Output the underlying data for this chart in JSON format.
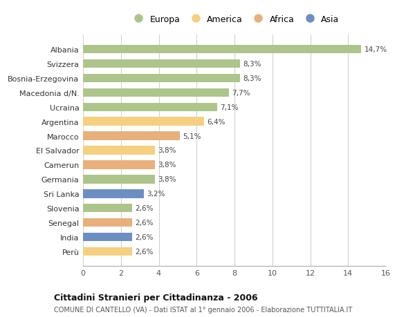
{
  "categories": [
    "Perù",
    "India",
    "Senegal",
    "Slovenia",
    "Sri Lanka",
    "Germania",
    "Camerun",
    "El Salvador",
    "Marocco",
    "Argentina",
    "Ucraina",
    "Macedonia d/N.",
    "Bosnia-Erzegovina",
    "Svizzera",
    "Albania"
  ],
  "values": [
    2.6,
    2.6,
    2.6,
    2.6,
    3.2,
    3.8,
    3.8,
    3.8,
    5.1,
    6.4,
    7.1,
    7.7,
    8.3,
    8.3,
    14.7
  ],
  "labels": [
    "2,6%",
    "2,6%",
    "2,6%",
    "2,6%",
    "3,2%",
    "3,8%",
    "3,8%",
    "3,8%",
    "5,1%",
    "6,4%",
    "7,1%",
    "7,7%",
    "8,3%",
    "8,3%",
    "14,7%"
  ],
  "continent": [
    "America",
    "Asia",
    "Africa",
    "Europa",
    "Asia",
    "Europa",
    "Africa",
    "America",
    "Africa",
    "America",
    "Europa",
    "Europa",
    "Europa",
    "Europa",
    "Europa"
  ],
  "colors": {
    "Europa": "#adc58a",
    "America": "#f5d080",
    "Africa": "#e8b07a",
    "Asia": "#6b8fc2"
  },
  "legend_order": [
    "Europa",
    "America",
    "Africa",
    "Asia"
  ],
  "title1": "Cittadini Stranieri per Cittadinanza - 2006",
  "title2": "COMUNE DI CANTELLO (VA) - Dati ISTAT al 1° gennaio 2006 - Elaborazione TUTTITALIA.IT",
  "xlim": [
    0,
    16
  ],
  "xticks": [
    0,
    2,
    4,
    6,
    8,
    10,
    12,
    14,
    16
  ],
  "bg_color": "#ffffff",
  "grid_color": "#d0d0d0"
}
